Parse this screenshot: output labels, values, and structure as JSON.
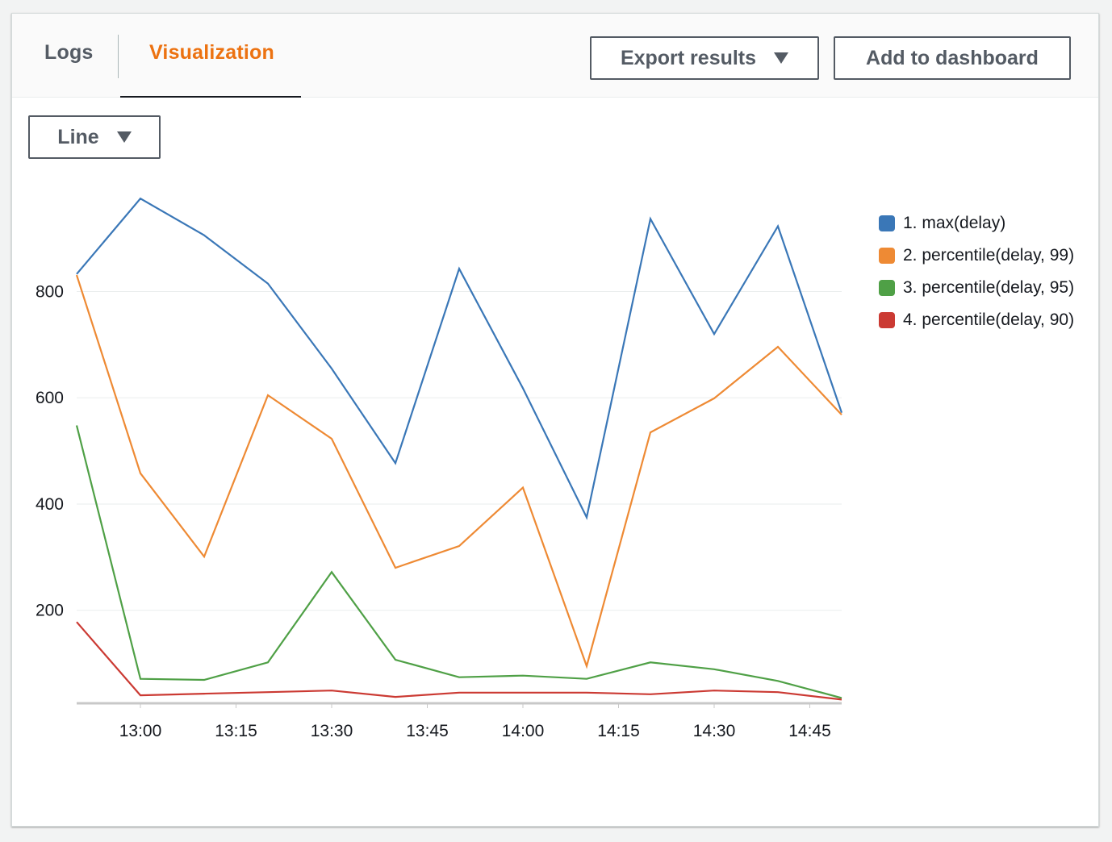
{
  "tabs": [
    {
      "label": "Logs",
      "active": false
    },
    {
      "label": "Visualization",
      "active": true
    }
  ],
  "toolbar": {
    "export_label": "Export results",
    "add_dashboard_label": "Add to dashboard"
  },
  "chart_type_select": {
    "selected": "Line"
  },
  "colors": {
    "accent": "#ec7211",
    "series": [
      "#3a77b7",
      "#ee8a34",
      "#4fa046",
      "#cb3a33"
    ]
  },
  "chart_data": {
    "type": "line",
    "title": "",
    "xlabel": "",
    "ylabel": "",
    "x": [
      "12:50",
      "13:00",
      "13:10",
      "13:20",
      "13:30",
      "13:40",
      "13:50",
      "14:00",
      "14:10",
      "14:20",
      "14:30",
      "14:40",
      "14:50"
    ],
    "x_ticks": [
      "13:00",
      "13:15",
      "13:30",
      "13:45",
      "14:00",
      "14:15",
      "14:30",
      "14:45"
    ],
    "y_ticks": [
      200,
      400,
      600,
      800
    ],
    "ylim": [
      25,
      1000
    ],
    "grid": "horizontal",
    "legend_position": "right",
    "series": [
      {
        "name": "1. max(delay)",
        "values": [
          833,
          975,
          906,
          815,
          655,
          477,
          843,
          618,
          375,
          937,
          720,
          923,
          572
        ]
      },
      {
        "name": "2. percentile(delay, 99)",
        "values": [
          831,
          458,
          301,
          605,
          523,
          280,
          321,
          431,
          95,
          535,
          599,
          696,
          568
        ]
      },
      {
        "name": "3. percentile(delay, 95)",
        "values": [
          548,
          71,
          69,
          102,
          272,
          107,
          74,
          77,
          71,
          102,
          89,
          67,
          35
        ]
      },
      {
        "name": "4. percentile(delay, 90)",
        "values": [
          178,
          40,
          43,
          46,
          49,
          37,
          45,
          45,
          45,
          42,
          49,
          46,
          32
        ]
      }
    ]
  }
}
